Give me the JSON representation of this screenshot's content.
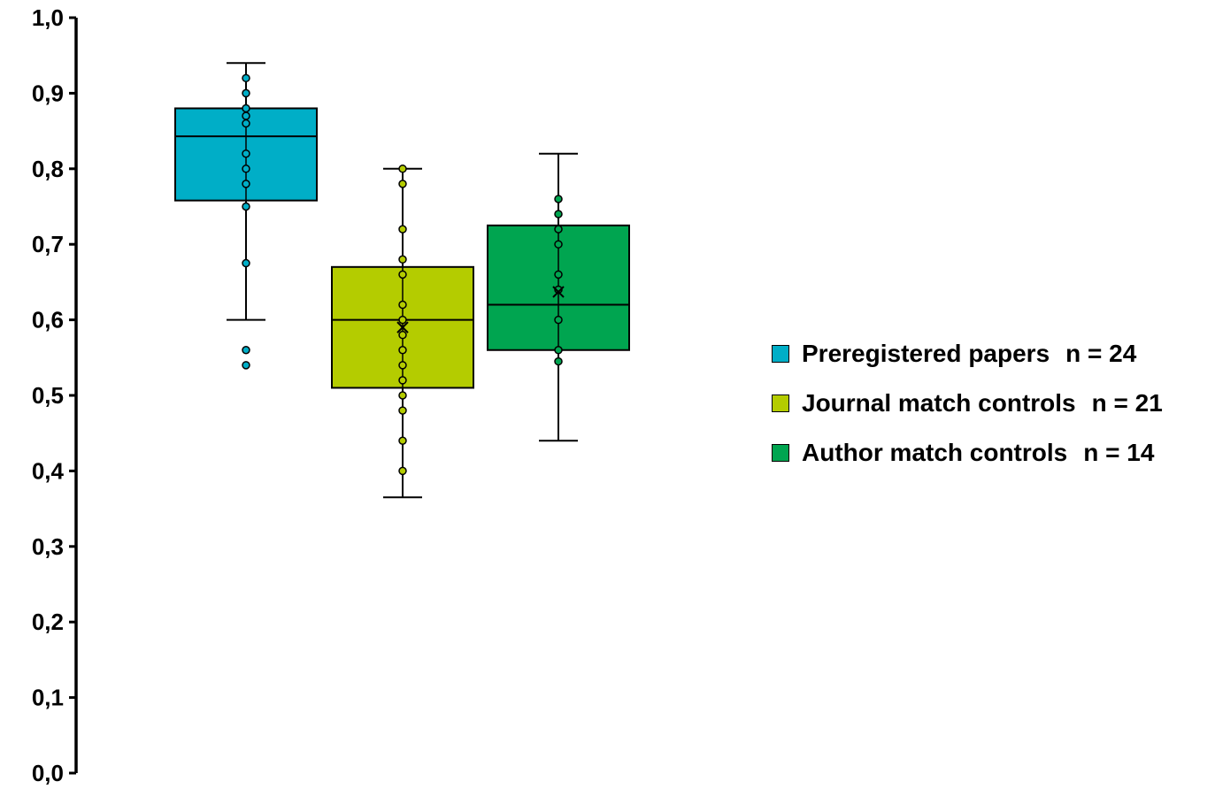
{
  "chart_data": {
    "type": "box",
    "ylim": [
      0.0,
      1.0
    ],
    "yticks": [
      "0,0",
      "0,1",
      "0,2",
      "0,3",
      "0,4",
      "0,5",
      "0,6",
      "0,7",
      "0,8",
      "0,9",
      "1,0"
    ],
    "grid": false,
    "legend_placement": "right",
    "series": [
      {
        "name": "Preregistered papers",
        "n_label": "n = 24",
        "color": "#00AEC7",
        "whisker_low": 0.6,
        "q1": 0.758,
        "median": 0.843,
        "q3": 0.88,
        "whisker_high": 0.94,
        "mean": null,
        "points": [
          0.92,
          0.9,
          0.88,
          0.87,
          0.86,
          0.82,
          0.8,
          0.78,
          0.75,
          0.675
        ],
        "outliers": [
          0.56,
          0.54
        ]
      },
      {
        "name": "Journal match controls",
        "n_label": "n = 21",
        "color": "#B4CC00",
        "whisker_low": 0.365,
        "q1": 0.51,
        "median": 0.6,
        "q3": 0.67,
        "whisker_high": 0.8,
        "mean": 0.59,
        "points": [
          0.8,
          0.78,
          0.72,
          0.68,
          0.66,
          0.62,
          0.6,
          0.58,
          0.56,
          0.54,
          0.52,
          0.5,
          0.48,
          0.44,
          0.4
        ],
        "outliers": []
      },
      {
        "name": "Author match controls",
        "n_label": "n = 14",
        "color": "#00A550",
        "whisker_low": 0.44,
        "q1": 0.56,
        "median": 0.62,
        "q3": 0.725,
        "whisker_high": 0.82,
        "mean": 0.637,
        "points": [
          0.76,
          0.74,
          0.72,
          0.7,
          0.66,
          0.64,
          0.6,
          0.56,
          0.545
        ],
        "outliers": []
      }
    ]
  }
}
